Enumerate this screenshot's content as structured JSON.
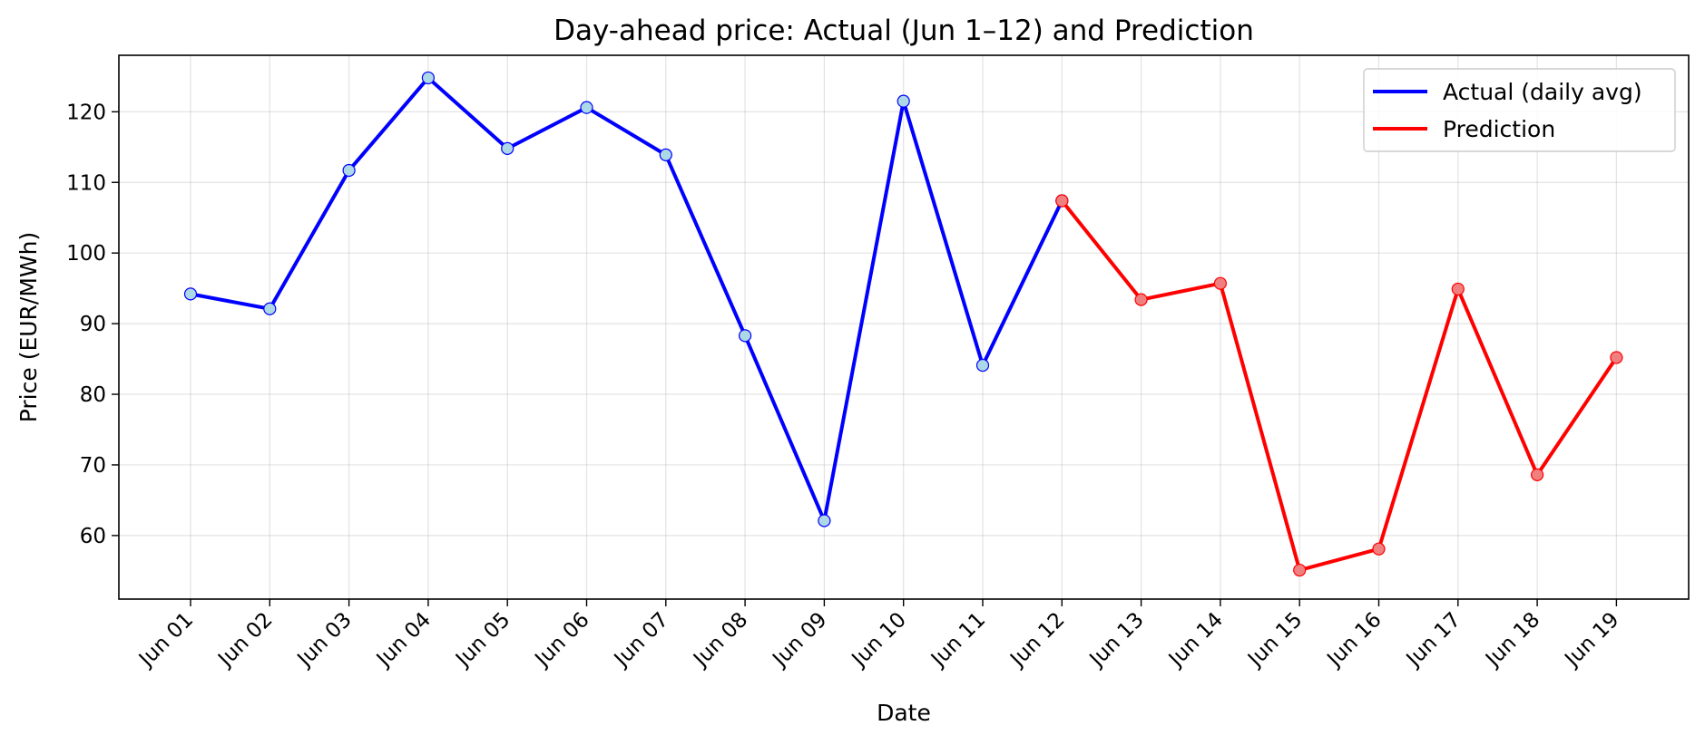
{
  "chart_data": {
    "type": "line",
    "title": "Day-ahead price: Actual (Jun 1–12) and Prediction",
    "xlabel": "Date",
    "ylabel": "Price (EUR/MWh)",
    "x": [
      "Jun 01",
      "Jun 02",
      "Jun 03",
      "Jun 04",
      "Jun 05",
      "Jun 06",
      "Jun 07",
      "Jun 08",
      "Jun 09",
      "Jun 10",
      "Jun 11",
      "Jun 12",
      "Jun 13",
      "Jun 14",
      "Jun 15",
      "Jun 16",
      "Jun 17",
      "Jun 18",
      "Jun 19"
    ],
    "ylim": [
      51,
      128
    ],
    "yticks": [
      60,
      70,
      80,
      90,
      100,
      110,
      120
    ],
    "grid": true,
    "legend_position": "top-right",
    "series": [
      {
        "name": "Actual (daily avg)",
        "color": "#0000ff",
        "marker_fill": "#add8e6",
        "x": [
          "Jun 01",
          "Jun 02",
          "Jun 03",
          "Jun 04",
          "Jun 05",
          "Jun 06",
          "Jun 07",
          "Jun 08",
          "Jun 09",
          "Jun 10",
          "Jun 11",
          "Jun 12"
        ],
        "values": [
          94.2,
          92.1,
          111.7,
          124.8,
          114.8,
          120.6,
          113.9,
          88.3,
          62.1,
          121.5,
          84.1,
          107.4
        ]
      },
      {
        "name": "Prediction",
        "color": "#ff0000",
        "marker_fill": "#f08080",
        "x": [
          "Jun 12",
          "Jun 13",
          "Jun 14",
          "Jun 15",
          "Jun 16",
          "Jun 17",
          "Jun 18",
          "Jun 19"
        ],
        "values": [
          107.4,
          93.4,
          95.7,
          55.1,
          58.1,
          94.9,
          68.6,
          85.2
        ]
      }
    ]
  }
}
